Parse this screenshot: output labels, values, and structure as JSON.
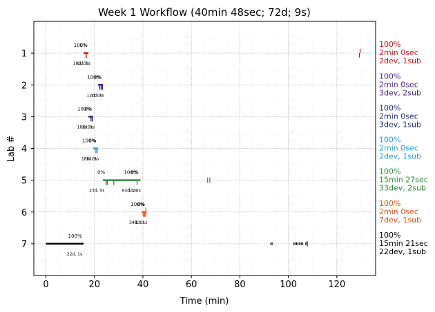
{
  "chart_data": {
    "type": "timeline",
    "title": "Week 1 Workflow (40min 48sec; 72d; 9s)",
    "xlabel": "Time (min)",
    "ylabel": "Lab #",
    "xlim": [
      -5,
      136
    ],
    "ylim": [
      8,
      0
    ],
    "x_ticks": [
      0,
      20,
      40,
      60,
      80,
      100,
      120
    ],
    "y_ticks": [
      1,
      2,
      3,
      4,
      5,
      6,
      7
    ],
    "grid": true,
    "labs": [
      {
        "lab": 1,
        "color": "#c0161c",
        "bar": [
          15.5,
          17.5
        ],
        "top_labels": [
          {
            "x": 14.3,
            "text": "100%"
          },
          {
            "x": 15.5,
            "text": "0%"
          }
        ],
        "bottom_labels": [
          {
            "x": 14.3,
            "text": "18d, 0s"
          },
          {
            "x": 15.7,
            "text": "1d, 1s"
          }
        ],
        "ticks_below": [
          16.6
        ],
        "marks": [
          {
            "x": 129.3,
            "dir": "below",
            "len": 0.14
          },
          {
            "x": 129.6,
            "dir": "above",
            "len": 0.14
          }
        ],
        "summary": [
          "100%",
          "2min 0sec",
          "2dev, 1sub"
        ]
      },
      {
        "lab": 2,
        "color": "#4c1f8c",
        "bar": [
          21.5,
          23.5
        ],
        "top_labels": [
          {
            "x": 19.8,
            "text": "100%"
          },
          {
            "x": 21.4,
            "text": "0%"
          }
        ],
        "bottom_labels": [
          {
            "x": 20.0,
            "text": "12d, 0s"
          },
          {
            "x": 21.4,
            "text": "1d, 1s"
          }
        ],
        "ticks_below": [
          22.2,
          22.8,
          23.3
        ],
        "marks": [],
        "summary": [
          "100%",
          "2min 0sec",
          "3dev, 2sub"
        ]
      },
      {
        "lab": 3,
        "color": "#1c2a78",
        "bar": [
          17.5,
          19.5
        ],
        "top_labels": [
          {
            "x": 15.8,
            "text": "100%"
          },
          {
            "x": 17.5,
            "text": "0%"
          }
        ],
        "bottom_labels": [
          {
            "x": 16.0,
            "text": "18d, 0s"
          },
          {
            "x": 17.5,
            "text": "1d, 1s"
          }
        ],
        "ticks_below": [
          18.6,
          19.2
        ],
        "marks": [],
        "summary": [
          "100%",
          "2min 0sec",
          "3dev, 1sub"
        ]
      },
      {
        "lab": 4,
        "color": "#2d9be0",
        "bar": [
          19.5,
          21.5
        ],
        "top_labels": [
          {
            "x": 17.8,
            "text": "100%"
          },
          {
            "x": 19.2,
            "text": "0%"
          }
        ],
        "bottom_labels": [
          {
            "x": 17.8,
            "text": "18d, 0s"
          },
          {
            "x": 19.2,
            "text": "1d, 1s"
          }
        ],
        "ticks_below": [
          20.6,
          21.1
        ],
        "marks": [],
        "summary": [
          "100%",
          "2min 0sec",
          "2dev, 1sub"
        ]
      },
      {
        "lab": 5,
        "color": "#2e8b3a",
        "bar": [
          23.5,
          39.0
        ],
        "top_labels": [
          {
            "x": 22.8,
            "text": "0%"
          },
          {
            "x": 35.0,
            "text": "100%"
          },
          {
            "x": 36.6,
            "text": "0%"
          }
        ],
        "bottom_labels": [
          {
            "x": 21.0,
            "text": "23d, 0s"
          },
          {
            "x": 34.5,
            "text": "64d, 2s"
          },
          {
            "x": 36.5,
            "text": "1d, 2s"
          }
        ],
        "ticks_below": [
          24.8,
          25.3,
          28.0,
          37.6
        ],
        "marks": [
          {
            "x": 66.7,
            "dir": "both",
            "len": 0.17
          },
          {
            "x": 67.6,
            "dir": "both",
            "len": 0.17
          }
        ],
        "summary": [
          "100%",
          "15min 27sec",
          "33dev, 2sub"
        ]
      },
      {
        "lab": 6,
        "color": "#e0541a",
        "bar": [
          39.5,
          41.5
        ],
        "top_labels": [
          {
            "x": 37.8,
            "text": "100%"
          },
          {
            "x": 39.3,
            "text": "0%"
          }
        ],
        "bottom_labels": [
          {
            "x": 37.5,
            "text": "34d, 0s"
          },
          {
            "x": 39.2,
            "text": "1d, 1s"
          }
        ],
        "ticks_below": [
          40.1,
          40.7,
          41.2
        ],
        "marks": [
          {
            "x": 41.2,
            "dir": "above",
            "len": 0.14
          }
        ],
        "summary": [
          "100%",
          "2min 0sec",
          "7dev, 1sub"
        ]
      },
      {
        "lab": 7,
        "color": "#000000",
        "bar": [
          0.0,
          15.5
        ],
        "top_labels": [
          {
            "x": 12.0,
            "text": "100%"
          }
        ],
        "bottom_labels": [
          {
            "x": 11.8,
            "text": "22d, 1s"
          }
        ],
        "ticks_below": [],
        "marks": [
          {
            "x": 92.8,
            "dir": "both",
            "len": 0.08
          },
          {
            "x": 93.3,
            "dir": "both",
            "len": 0.08
          },
          {
            "x": 102.3,
            "dir": "both",
            "len": 0.08
          },
          {
            "x": 102.8,
            "dir": "both",
            "len": 0.08
          },
          {
            "x": 103.4,
            "dir": "both",
            "len": 0.08
          },
          {
            "x": 104.0,
            "dir": "both",
            "len": 0.08
          },
          {
            "x": 104.6,
            "dir": "both",
            "len": 0.08
          },
          {
            "x": 105.3,
            "dir": "both",
            "len": 0.08
          },
          {
            "x": 105.9,
            "dir": "both",
            "len": 0.08
          },
          {
            "x": 107.2,
            "dir": "both",
            "len": 0.08
          },
          {
            "x": 107.8,
            "dir": "both",
            "len": 0.16
          }
        ],
        "summary": [
          "100%",
          "15min 21sec",
          "22dev, 1sub"
        ]
      }
    ]
  }
}
